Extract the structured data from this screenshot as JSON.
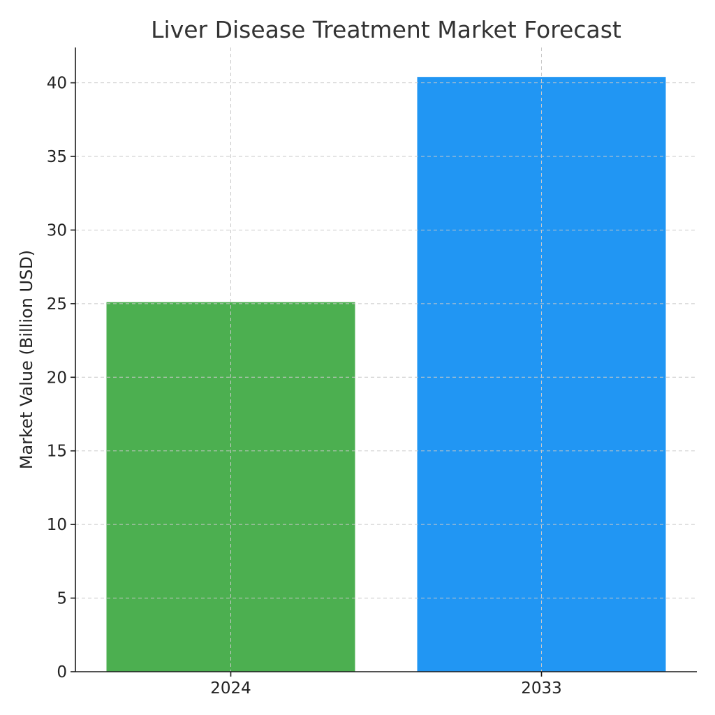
{
  "chart_data": {
    "type": "bar",
    "title": "Liver Disease Treatment Market Forecast",
    "xlabel": "",
    "ylabel": "Market Value (Billion USD)",
    "categories": [
      "2024",
      "2033"
    ],
    "values": [
      25.1,
      40.4
    ],
    "colors": [
      "#4caf50",
      "#2196f3"
    ],
    "ylim": [
      0,
      42.4
    ],
    "yticks": [
      0,
      5,
      10,
      15,
      20,
      25,
      30,
      35,
      40
    ],
    "grid": true
  }
}
